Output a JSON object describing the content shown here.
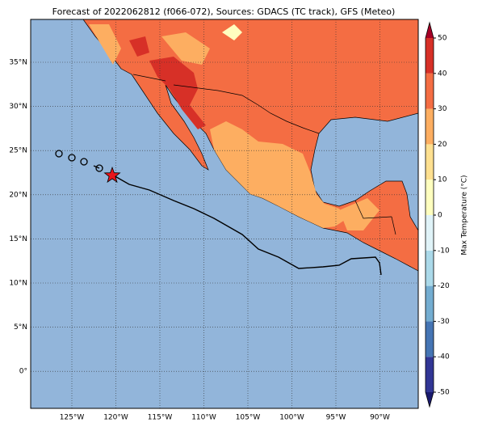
{
  "title": "Forecast of 2022062812 (f066-072), Sources: GDACS (TC track), GFS (Meteo)",
  "map": {
    "lon_labels": [
      "125°W",
      "120°W",
      "115°W",
      "110°W",
      "105°W",
      "100°W",
      "95°W",
      "90°W"
    ],
    "lat_labels": [
      "35°N",
      "30°N",
      "25°N",
      "20°N",
      "15°N",
      "10°N",
      "5°N",
      "0°"
    ]
  },
  "colorbar": {
    "label": "Max Temperature (°C)",
    "ticks": [
      -50,
      -40,
      -30,
      -20,
      -10,
      0,
      10,
      20,
      30,
      40,
      50
    ],
    "colors": [
      "#313695",
      "#4575b4",
      "#74add1",
      "#abd9e9",
      "#e0f3f8",
      "#ffffbf",
      "#fee090",
      "#fdae61",
      "#f46d43",
      "#d73027"
    ],
    "under_color": "#1a1a6e",
    "over_color": "#a50026"
  }
}
